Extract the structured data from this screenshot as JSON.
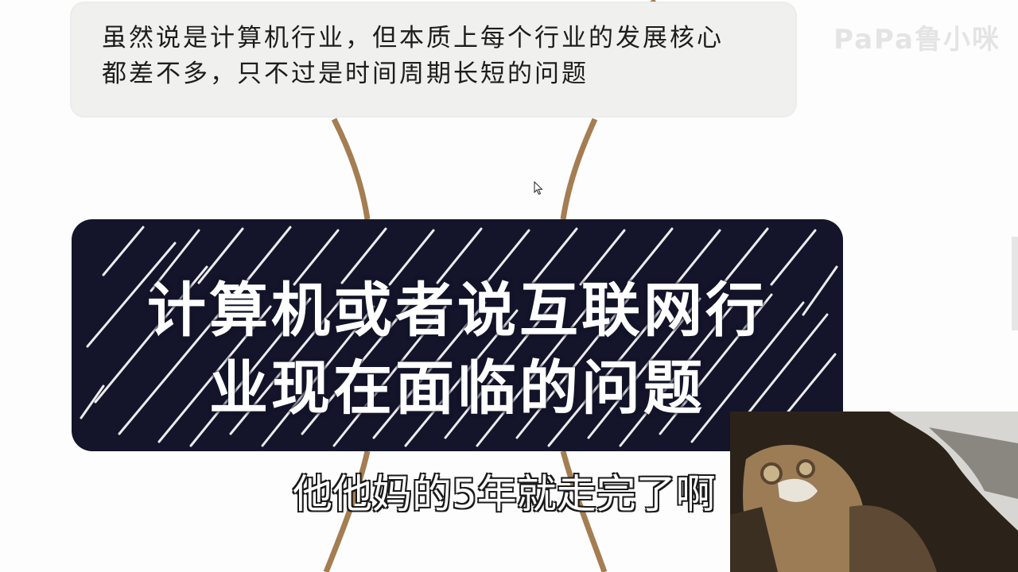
{
  "quote": {
    "line1": "虽然说是计算机行业，但本质上每个行业的发展核心",
    "line2": "都差不多，只不过是时间周期长短的问题"
  },
  "watermark": "PaPa鲁小咪",
  "title": {
    "line1": "计算机或者说互联网行",
    "line2": "业现在面临的问题"
  },
  "subtitle": "他他妈的5年就走完了啊",
  "icons": {
    "cursor": "mouse-pointer-icon",
    "webcam": "webcam-feed"
  },
  "colors": {
    "card": "#14152a",
    "curve": "#a07a4e",
    "quote_bg": "#f0f0ee"
  }
}
